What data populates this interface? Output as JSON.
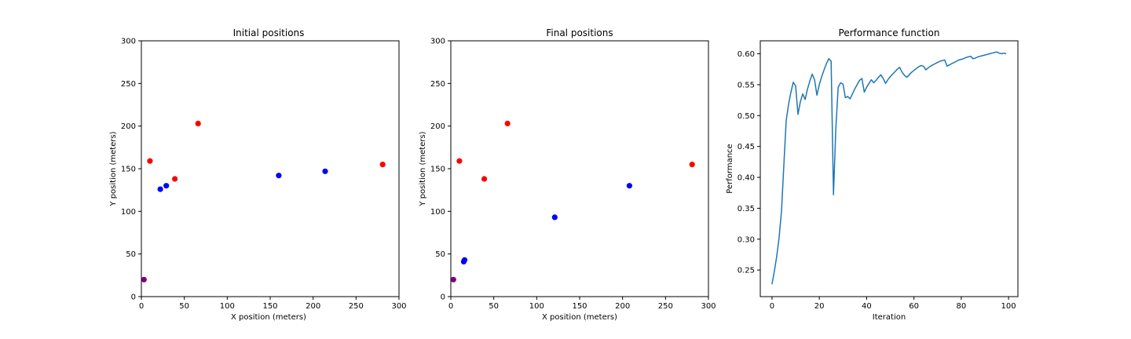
{
  "chart_data": [
    {
      "type": "scatter",
      "title": "Initial positions",
      "xlabel": "X position (meters)",
      "ylabel": "Y position (meters)",
      "xlim": [
        0,
        300
      ],
      "ylim": [
        0,
        300
      ],
      "xticks": [
        0,
        50,
        100,
        150,
        200,
        250,
        300
      ],
      "yticks": [
        0,
        50,
        100,
        150,
        200,
        250,
        300
      ],
      "grid": false,
      "series": [
        {
          "color": "#ff0000",
          "points": [
            [
              10,
              159
            ],
            [
              39,
              138
            ],
            [
              66,
              203
            ],
            [
              281,
              155
            ]
          ]
        },
        {
          "color": "#0000ff",
          "points": [
            [
              22,
              126
            ],
            [
              29,
              130
            ],
            [
              160,
              142
            ],
            [
              214,
              147
            ]
          ]
        },
        {
          "color": "#800080",
          "points": [
            [
              3,
              20
            ]
          ]
        }
      ]
    },
    {
      "type": "scatter",
      "title": "Final positions",
      "xlabel": "X position (meters)",
      "ylabel": "Y position (meters)",
      "xlim": [
        0,
        300
      ],
      "ylim": [
        0,
        300
      ],
      "xticks": [
        0,
        50,
        100,
        150,
        200,
        250,
        300
      ],
      "yticks": [
        0,
        50,
        100,
        150,
        200,
        250,
        300
      ],
      "grid": false,
      "series": [
        {
          "color": "#ff0000",
          "points": [
            [
              10,
              159
            ],
            [
              39,
              138
            ],
            [
              66,
              203
            ],
            [
              281,
              155
            ]
          ]
        },
        {
          "color": "#0000ff",
          "points": [
            [
              15,
              41
            ],
            [
              16,
              43
            ],
            [
              121,
              93
            ],
            [
              208,
              130
            ]
          ]
        },
        {
          "color": "#800080",
          "points": [
            [
              3,
              20
            ]
          ]
        }
      ]
    },
    {
      "type": "line",
      "title": "Performance function",
      "xlabel": "Iteration",
      "ylabel": "Performance",
      "xlim": [
        -4.95,
        103.95
      ],
      "ylim": [
        0.207,
        0.621
      ],
      "xticks": [
        0,
        20,
        40,
        60,
        80,
        100
      ],
      "yticks": [
        0.25,
        0.3,
        0.35,
        0.4,
        0.45,
        0.5,
        0.55,
        0.6
      ],
      "grid": false,
      "series": [
        {
          "color": "#1f77b4",
          "x": [
            0,
            1,
            2,
            3,
            4,
            5,
            6,
            7,
            8,
            9,
            10,
            11,
            12,
            13,
            14,
            15,
            16,
            17,
            18,
            19,
            20,
            21,
            22,
            23,
            24,
            25,
            26,
            27,
            28,
            29,
            30,
            31,
            32,
            33,
            34,
            35,
            36,
            37,
            38,
            39,
            40,
            41,
            42,
            43,
            44,
            45,
            46,
            47,
            48,
            49,
            50,
            51,
            52,
            53,
            54,
            55,
            56,
            57,
            58,
            59,
            60,
            61,
            62,
            63,
            64,
            65,
            66,
            67,
            68,
            69,
            70,
            71,
            72,
            73,
            74,
            75,
            76,
            77,
            78,
            79,
            80,
            81,
            82,
            83,
            84,
            85,
            86,
            87,
            88,
            89,
            90,
            91,
            92,
            93,
            94,
            95,
            96,
            97,
            98,
            99
          ],
          "y": [
            0.227,
            0.248,
            0.272,
            0.302,
            0.345,
            0.42,
            0.492,
            0.518,
            0.538,
            0.554,
            0.548,
            0.502,
            0.523,
            0.535,
            0.526,
            0.543,
            0.556,
            0.567,
            0.558,
            0.533,
            0.55,
            0.563,
            0.574,
            0.584,
            0.592,
            0.588,
            0.372,
            0.48,
            0.546,
            0.553,
            0.551,
            0.529,
            0.531,
            0.527,
            0.535,
            0.543,
            0.55,
            0.557,
            0.56,
            0.538,
            0.546,
            0.552,
            0.558,
            0.553,
            0.557,
            0.562,
            0.566,
            0.56,
            0.552,
            0.558,
            0.563,
            0.567,
            0.571,
            0.575,
            0.578,
            0.57,
            0.565,
            0.562,
            0.566,
            0.57,
            0.573,
            0.576,
            0.579,
            0.581,
            0.58,
            0.574,
            0.577,
            0.58,
            0.582,
            0.584,
            0.586,
            0.588,
            0.589,
            0.59,
            0.58,
            0.582,
            0.584,
            0.586,
            0.588,
            0.59,
            0.591,
            0.592,
            0.594,
            0.595,
            0.596,
            0.592,
            0.593,
            0.595,
            0.596,
            0.597,
            0.598,
            0.599,
            0.6,
            0.601,
            0.602,
            0.603,
            0.601,
            0.6,
            0.601,
            0.6
          ]
        }
      ]
    }
  ]
}
